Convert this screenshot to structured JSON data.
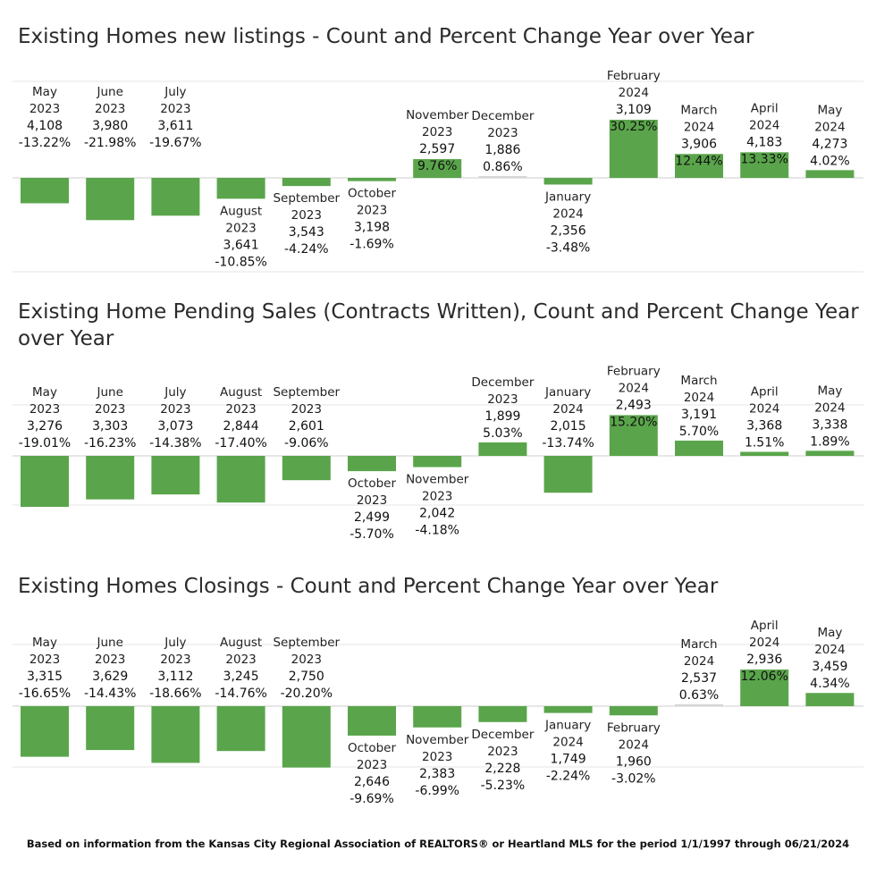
{
  "footnote": "Based on information from the Kansas City Regional Association of REALTORS® or Heartland MLS for the period 1/1/1997 through  06/21/2024",
  "colors": {
    "bar": "#5aa54b",
    "bar_small": "#d6d6d6",
    "grid": "#e6e6e6",
    "zero": "#cccccc"
  },
  "chart_data": [
    {
      "type": "bar",
      "title": "Existing Homes new listings -  Count and Percent Change Year over Year",
      "ylim": [
        -25,
        35
      ],
      "grid": true,
      "bars": [
        {
          "month": "May",
          "year": "2023",
          "count": "4,108",
          "pct_label": "-13.22%",
          "pct": -13.22
        },
        {
          "month": "June",
          "year": "2023",
          "count": "3,980",
          "pct_label": "-21.98%",
          "pct": -21.98
        },
        {
          "month": "July",
          "year": "2023",
          "count": "3,611",
          "pct_label": "-19.67%",
          "pct": -19.67
        },
        {
          "month": "August",
          "year": "2023",
          "count": "3,641",
          "pct_label": "-10.85%",
          "pct": -10.85
        },
        {
          "month": "September",
          "year": "2023",
          "count": "3,543",
          "pct_label": "-4.24%",
          "pct": -4.24
        },
        {
          "month": "October",
          "year": "2023",
          "count": "3,198",
          "pct_label": "-1.69%",
          "pct": -1.69
        },
        {
          "month": "November",
          "year": "2023",
          "count": "2,597",
          "pct_label": "9.76%",
          "pct": 9.76
        },
        {
          "month": "December",
          "year": "2023",
          "count": "1,886",
          "pct_label": "0.86%",
          "pct": 0.86
        },
        {
          "month": "January",
          "year": "2024",
          "count": "2,356",
          "pct_label": "-3.48%",
          "pct": -3.48
        },
        {
          "month": "February",
          "year": "2024",
          "count": "3,109",
          "pct_label": "30.25%",
          "pct": 30.25
        },
        {
          "month": "March",
          "year": "2024",
          "count": "3,906",
          "pct_label": "12.44%",
          "pct": 12.44
        },
        {
          "month": "April",
          "year": "2024",
          "count": "4,183",
          "pct_label": "13.33%",
          "pct": 13.33
        },
        {
          "month": "May",
          "year": "2024",
          "count": "4,273",
          "pct_label": "4.02%",
          "pct": 4.02
        }
      ]
    },
    {
      "type": "bar",
      "title": "Existing Home Pending Sales (Contracts Written), Count and Percent Change Year over Year",
      "ylim": [
        -20,
        20
      ],
      "grid": true,
      "bars": [
        {
          "month": "May",
          "year": "2023",
          "count": "3,276",
          "pct_label": "-19.01%",
          "pct": -19.01
        },
        {
          "month": "June",
          "year": "2023",
          "count": "3,303",
          "pct_label": "-16.23%",
          "pct": -16.23
        },
        {
          "month": "July",
          "year": "2023",
          "count": "3,073",
          "pct_label": "-14.38%",
          "pct": -14.38
        },
        {
          "month": "August",
          "year": "2023",
          "count": "2,844",
          "pct_label": "-17.40%",
          "pct": -17.4
        },
        {
          "month": "September",
          "year": "2023",
          "count": "2,601",
          "pct_label": "-9.06%",
          "pct": -9.06
        },
        {
          "month": "October",
          "year": "2023",
          "count": "2,499",
          "pct_label": "-5.70%",
          "pct": -5.7
        },
        {
          "month": "November",
          "year": "2023",
          "count": "2,042",
          "pct_label": "-4.18%",
          "pct": -4.18
        },
        {
          "month": "December",
          "year": "2023",
          "count": "1,899",
          "pct_label": "5.03%",
          "pct": 5.03
        },
        {
          "month": "January",
          "year": "2024",
          "count": "2,015",
          "pct_label": "-13.74%",
          "pct": -13.74
        },
        {
          "month": "February",
          "year": "2024",
          "count": "2,493",
          "pct_label": "15.20%",
          "pct": 15.2
        },
        {
          "month": "March",
          "year": "2024",
          "count": "3,191",
          "pct_label": "5.70%",
          "pct": 5.7
        },
        {
          "month": "April",
          "year": "2024",
          "count": "3,368",
          "pct_label": "1.51%",
          "pct": 1.51
        },
        {
          "month": "May",
          "year": "2024",
          "count": "3,338",
          "pct_label": "1.89%",
          "pct": 1.89
        }
      ]
    },
    {
      "type": "bar",
      "title": "Existing Homes Closings - Count and Percent Change Year over Year",
      "ylim": [
        -25,
        25
      ],
      "grid": true,
      "bars": [
        {
          "month": "May",
          "year": "2023",
          "count": "3,315",
          "pct_label": "-16.65%",
          "pct": -16.65
        },
        {
          "month": "June",
          "year": "2023",
          "count": "3,629",
          "pct_label": "-14.43%",
          "pct": -14.43
        },
        {
          "month": "July",
          "year": "2023",
          "count": "3,112",
          "pct_label": "-18.66%",
          "pct": -18.66
        },
        {
          "month": "August",
          "year": "2023",
          "count": "3,245",
          "pct_label": "-14.76%",
          "pct": -14.76
        },
        {
          "month": "September",
          "year": "2023",
          "count": "2,750",
          "pct_label": "-20.20%",
          "pct": -20.2
        },
        {
          "month": "October",
          "year": "2023",
          "count": "2,646",
          "pct_label": "-9.69%",
          "pct": -9.69
        },
        {
          "month": "November",
          "year": "2023",
          "count": "2,383",
          "pct_label": "-6.99%",
          "pct": -6.99
        },
        {
          "month": "December",
          "year": "2023",
          "count": "2,228",
          "pct_label": "-5.23%",
          "pct": -5.23
        },
        {
          "month": "January",
          "year": "2024",
          "count": "1,749",
          "pct_label": "-2.24%",
          "pct": -2.24
        },
        {
          "month": "February",
          "year": "2024",
          "count": "1,960",
          "pct_label": "-3.02%",
          "pct": -3.02
        },
        {
          "month": "March",
          "year": "2024",
          "count": "2,537",
          "pct_label": "0.63%",
          "pct": 0.63
        },
        {
          "month": "April",
          "year": "2024",
          "count": "2,936",
          "pct_label": "12.06%",
          "pct": 12.06
        },
        {
          "month": "May",
          "year": "2024",
          "count": "3,459",
          "pct_label": "4.34%",
          "pct": 4.34
        }
      ]
    }
  ]
}
